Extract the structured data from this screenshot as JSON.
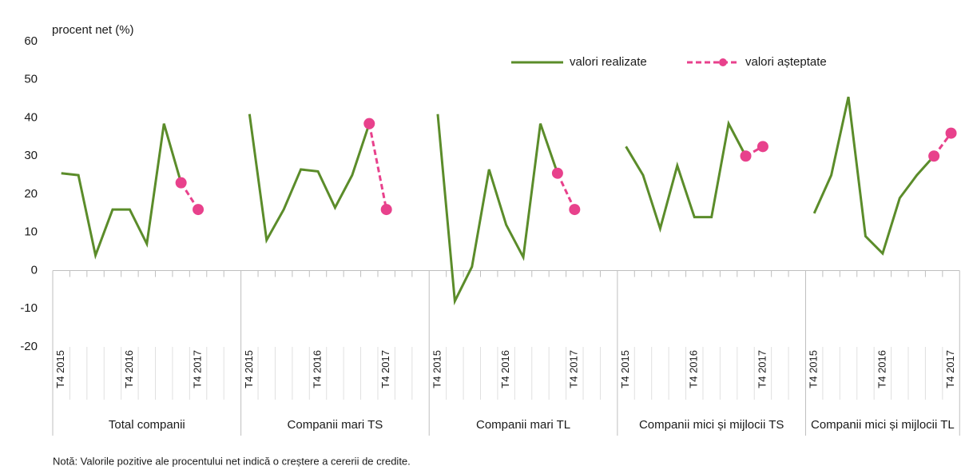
{
  "chart_data": {
    "type": "line",
    "y_label": "procent net (%)",
    "ylim": [
      -20,
      60
    ],
    "yticks": [
      -20,
      -10,
      0,
      10,
      20,
      30,
      40,
      50,
      60
    ],
    "grid": false,
    "legend": "top-right",
    "series": [
      {
        "name": "valori realizate",
        "color": "#5b8c2a",
        "style": "solid",
        "markers": false
      },
      {
        "name": "valori așteptate",
        "color": "#e8418c",
        "style": "dashed",
        "markers": true
      }
    ],
    "panels": [
      {
        "label": "Total companii",
        "categories": [
          "T4 2015",
          null,
          null,
          null,
          "T4 2016",
          null,
          null,
          null,
          "T4 2017"
        ],
        "values": [
          [
            25.5,
            25,
            4,
            16,
            16,
            7,
            38.5,
            23,
            null
          ],
          [
            null,
            null,
            null,
            null,
            null,
            null,
            null,
            23,
            16
          ]
        ]
      },
      {
        "label": "Companii mari TS",
        "categories": [
          "T4 2015",
          null,
          null,
          null,
          "T4 2016",
          null,
          null,
          null,
          "T4 2017"
        ],
        "values": [
          [
            41,
            8,
            16,
            26.5,
            26,
            16.5,
            25,
            38.5,
            null
          ],
          [
            null,
            null,
            null,
            null,
            null,
            null,
            null,
            38.5,
            16
          ]
        ]
      },
      {
        "label": "Companii mari TL",
        "categories": [
          "T4 2015",
          null,
          null,
          null,
          "T4 2016",
          null,
          null,
          null,
          "T4 2017"
        ],
        "values": [
          [
            41,
            -8,
            1,
            26.5,
            12,
            3.5,
            38.5,
            25.5,
            null
          ],
          [
            null,
            null,
            null,
            null,
            null,
            null,
            null,
            25.5,
            16
          ]
        ]
      },
      {
        "label": "Companii mici și mijlocii TS",
        "categories": [
          "T4 2015",
          null,
          null,
          null,
          "T4 2016",
          null,
          null,
          null,
          "T4 2017"
        ],
        "values": [
          [
            32.5,
            25,
            11,
            27.5,
            14,
            14,
            38.5,
            30,
            null
          ],
          [
            null,
            null,
            null,
            null,
            null,
            null,
            null,
            30,
            32.5
          ]
        ]
      },
      {
        "label": "Companii mici și mijlocii TL",
        "categories": [
          "T4 2015",
          null,
          null,
          null,
          "T4 2016",
          null,
          null,
          null,
          "T4 2017"
        ],
        "values": [
          [
            15,
            25,
            45.5,
            9,
            4.5,
            19,
            25,
            30,
            null
          ],
          [
            null,
            null,
            null,
            null,
            null,
            null,
            null,
            30,
            36
          ]
        ]
      }
    ],
    "note": "Notă: Valorile pozitive ale procentului net indică o creștere a cererii de credite."
  }
}
